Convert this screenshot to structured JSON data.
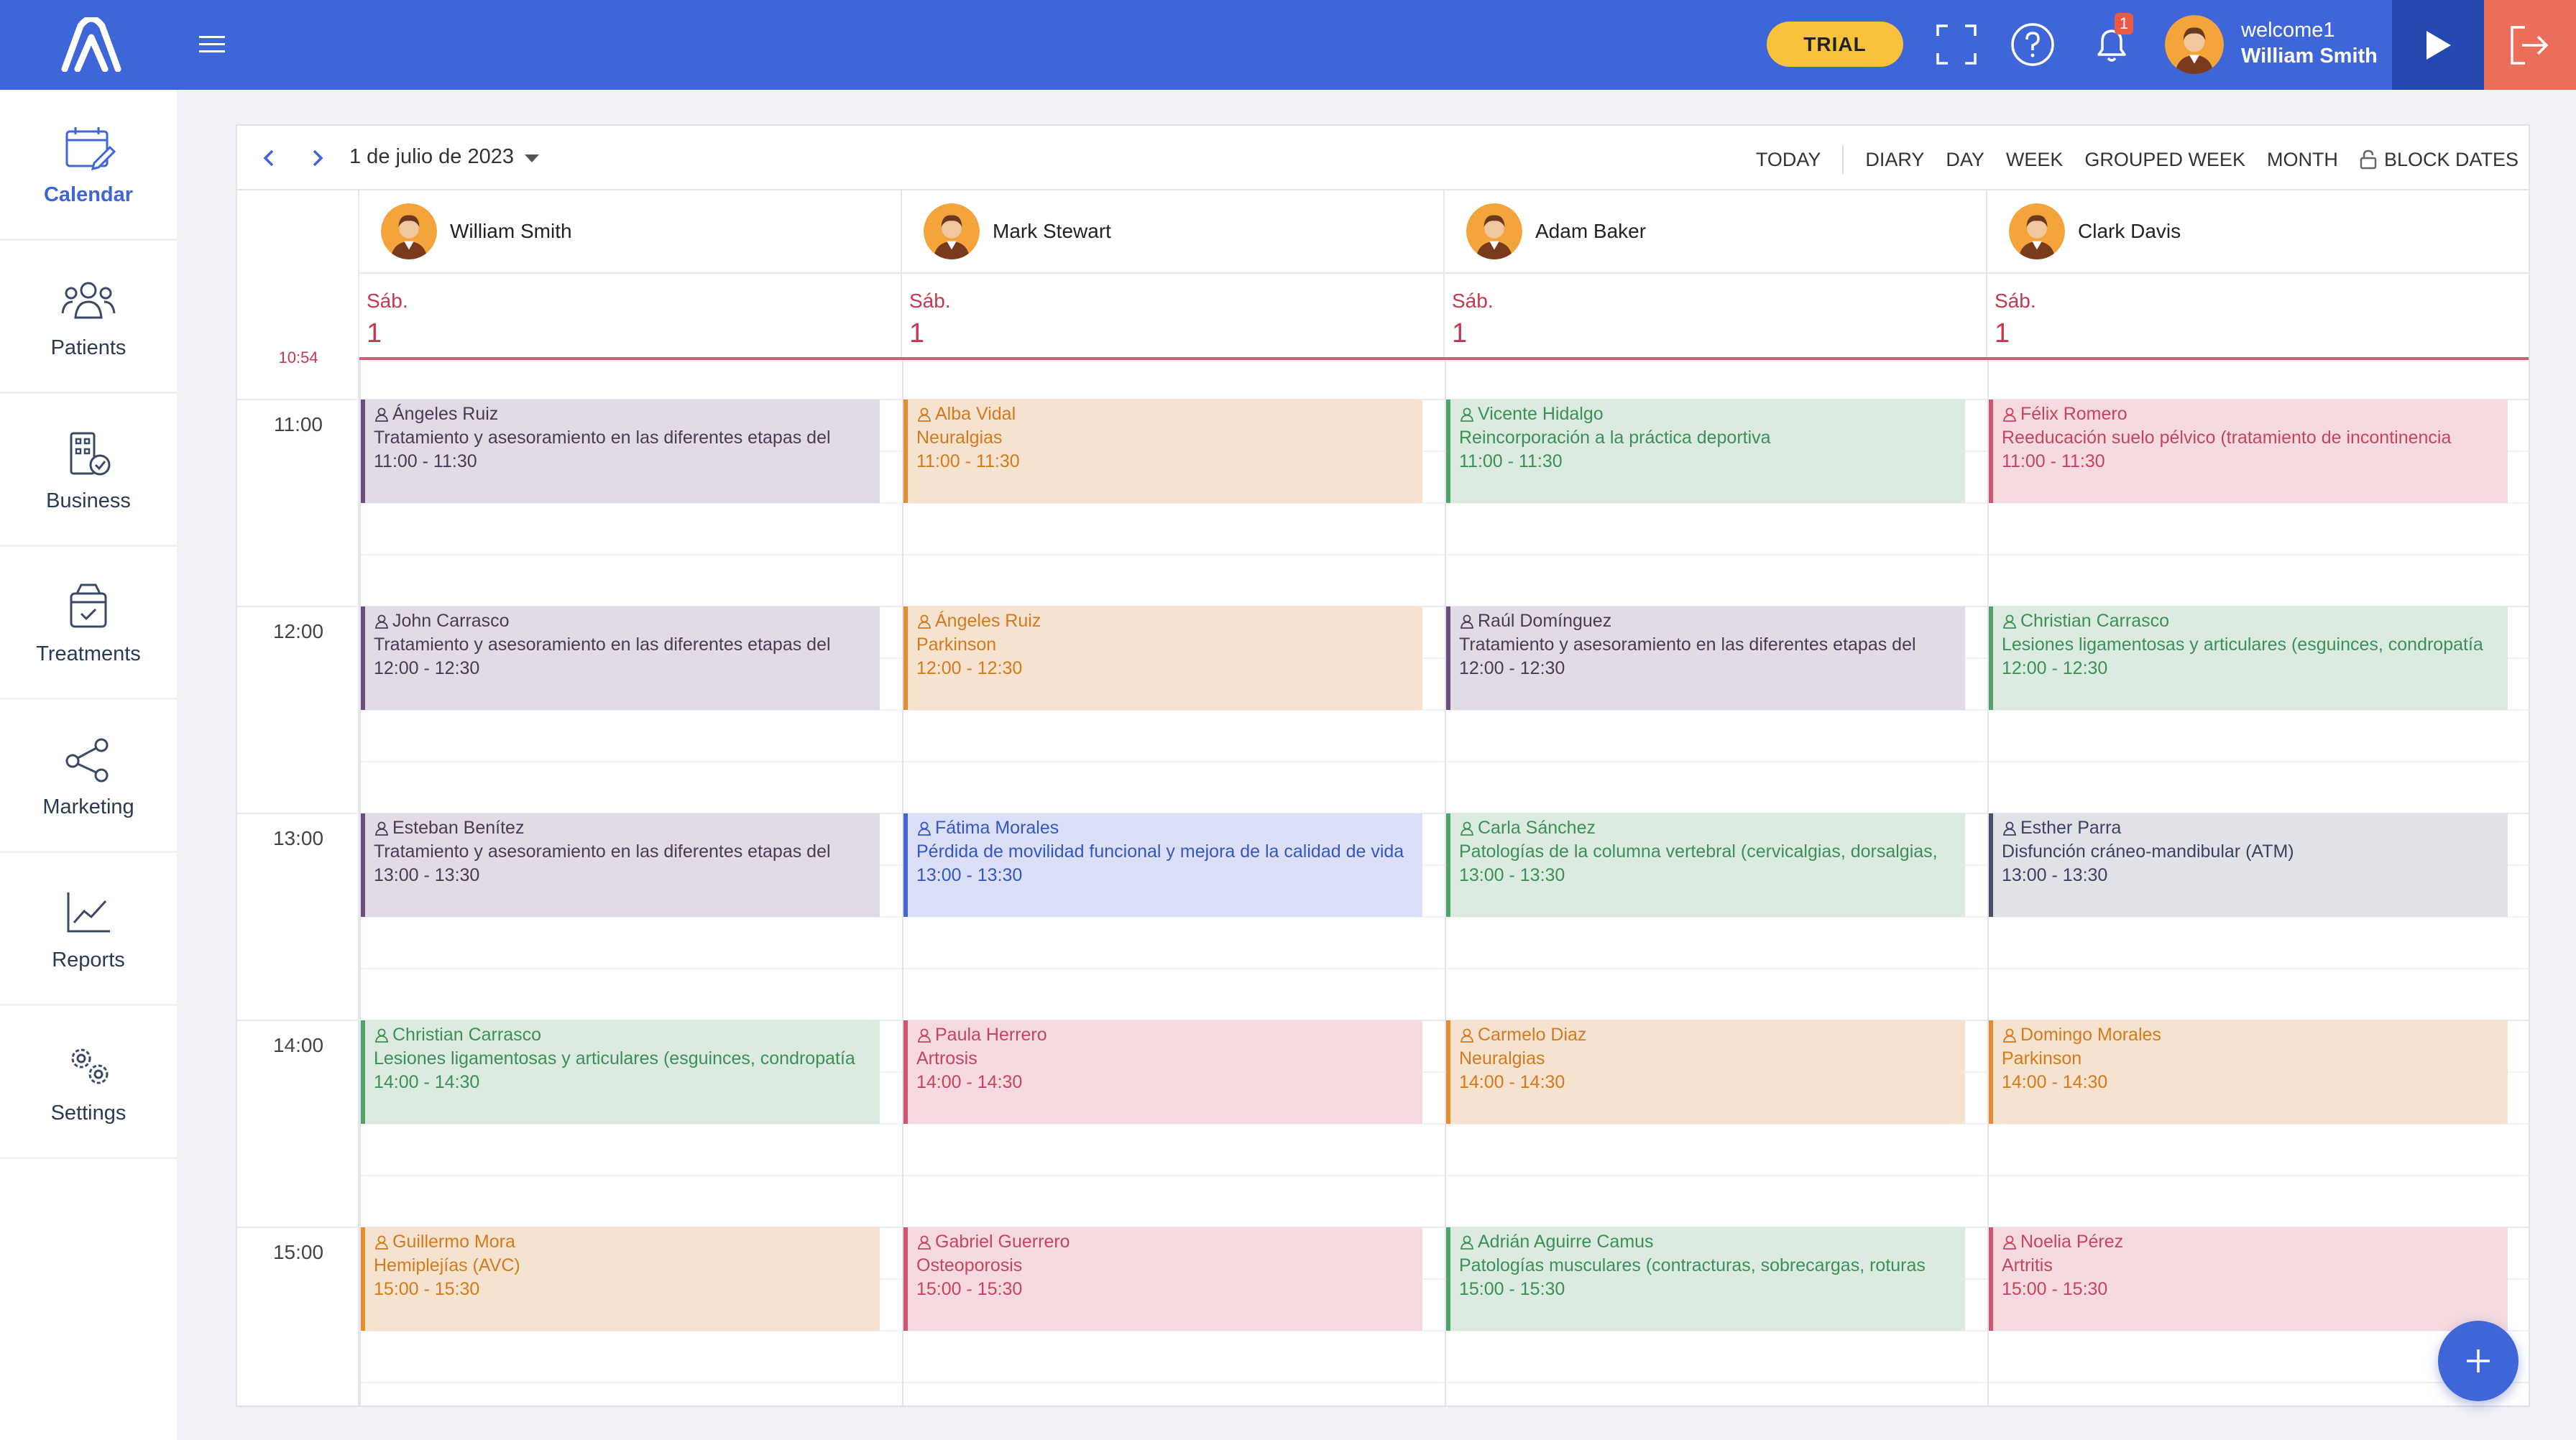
{
  "header": {
    "trial_label": "TRIAL",
    "notification_count": "1",
    "welcome_text": "welcome1",
    "user_name": "William Smith"
  },
  "sidebar": {
    "items": [
      {
        "label": "Calendar",
        "icon": "calendar-icon",
        "active": true
      },
      {
        "label": "Patients",
        "icon": "patients-icon"
      },
      {
        "label": "Business",
        "icon": "business-icon"
      },
      {
        "label": "Treatments",
        "icon": "treatments-icon"
      },
      {
        "label": "Marketing",
        "icon": "share-icon"
      },
      {
        "label": "Reports",
        "icon": "chart-icon"
      },
      {
        "label": "Settings",
        "icon": "gears-icon"
      }
    ]
  },
  "toolbar": {
    "date_label": "1 de julio de 2023",
    "views": [
      "TODAY",
      "DIARY",
      "DAY",
      "WEEK",
      "GROUPED WEEK",
      "MONTH",
      "BLOCK DATES"
    ]
  },
  "calendar": {
    "employees": [
      {
        "name": "William Smith",
        "day_name": "Sáb.",
        "day_num": "1"
      },
      {
        "name": "Mark Stewart",
        "day_name": "Sáb.",
        "day_num": "1"
      },
      {
        "name": "Adam Baker",
        "day_name": "Sáb.",
        "day_num": "1"
      },
      {
        "name": "Clark Davis",
        "day_name": "Sáb.",
        "day_num": "1"
      }
    ],
    "current_time": "10:54",
    "hours": [
      "11:00",
      "12:00",
      "13:00",
      "14:00",
      "15:00"
    ],
    "appointments": [
      [
        {
          "patient": "Ángeles Ruiz",
          "treatment": "Tratamiento y asesoramiento en las diferentes etapas del",
          "time": "11:00 - 11:30",
          "color": "purple"
        },
        {
          "patient": "John Carrasco",
          "treatment": "Tratamiento y asesoramiento en las diferentes etapas del",
          "time": "12:00 - 12:30",
          "color": "purple"
        },
        {
          "patient": "Esteban Benítez",
          "treatment": "Tratamiento y asesoramiento en las diferentes etapas del",
          "time": "13:00 - 13:30",
          "color": "purple"
        },
        {
          "patient": "Christian Carrasco",
          "treatment": "Lesiones ligamentosas y articulares (esguinces, condropatía",
          "time": "14:00 - 14:30",
          "color": "green"
        },
        {
          "patient": "Guillermo Mora",
          "treatment": "Hemiplejías (AVC)",
          "time": "15:00 - 15:30",
          "color": "orange"
        }
      ],
      [
        {
          "patient": "Alba Vidal",
          "treatment": "Neuralgias",
          "time": "11:00 - 11:30",
          "color": "orange"
        },
        {
          "patient": "Ángeles Ruiz",
          "treatment": "Parkinson",
          "time": "12:00 - 12:30",
          "color": "orange"
        },
        {
          "patient": "Fátima Morales",
          "treatment": "Pérdida de movilidad funcional y mejora de la calidad de vida",
          "time": "13:00 - 13:30",
          "color": "blue"
        },
        {
          "patient": "Paula Herrero",
          "treatment": "Artrosis",
          "time": "14:00 - 14:30",
          "color": "red"
        },
        {
          "patient": "Gabriel Guerrero",
          "treatment": "Osteoporosis",
          "time": "15:00 - 15:30",
          "color": "red"
        }
      ],
      [
        {
          "patient": "Vicente Hidalgo",
          "treatment": "Reincorporación a la práctica deportiva",
          "time": "11:00 - 11:30",
          "color": "green"
        },
        {
          "patient": "Raúl Domínguez",
          "treatment": "Tratamiento y asesoramiento en las diferentes etapas del",
          "time": "12:00 - 12:30",
          "color": "purple"
        },
        {
          "patient": "Carla Sánchez",
          "treatment": "Patologías de la columna vertebral (cervicalgias, dorsalgias,",
          "time": "13:00 - 13:30",
          "color": "green"
        },
        {
          "patient": "Carmelo Diaz",
          "treatment": "Neuralgias",
          "time": "14:00 - 14:30",
          "color": "orange"
        },
        {
          "patient": "Adrián Aguirre Camus",
          "treatment": "Patologías musculares (contracturas, sobrecargas, roturas",
          "time": "15:00 - 15:30",
          "color": "green"
        }
      ],
      [
        {
          "patient": "Félix Romero",
          "treatment": "Reeducación suelo pélvico (tratamiento de incontinencia",
          "time": "11:00 - 11:30",
          "color": "red"
        },
        {
          "patient": "Christian Carrasco",
          "treatment": "Lesiones ligamentosas y articulares (esguinces, condropatía",
          "time": "12:00 - 12:30",
          "color": "green"
        },
        {
          "patient": "Esther Parra",
          "treatment": "Disfunción cráneo-mandibular (ATM)",
          "time": "13:00 - 13:30",
          "color": "slate"
        },
        {
          "patient": "Domingo Morales",
          "treatment": "Parkinson",
          "time": "14:00 - 14:30",
          "color": "orange"
        },
        {
          "patient": "Noelia Pérez",
          "treatment": "Artritis",
          "time": "15:00 - 15:30",
          "color": "red"
        }
      ]
    ]
  },
  "colors": {
    "brand": "#3f66d8",
    "trial": "#f8c33a",
    "logout": "#ea6e59",
    "today_red": "#c9364d"
  }
}
